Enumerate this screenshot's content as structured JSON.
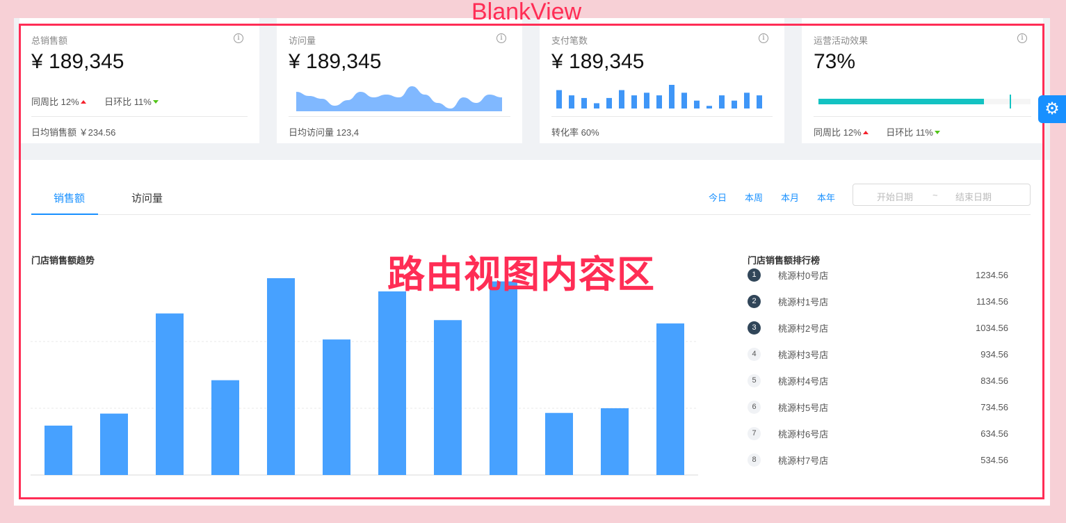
{
  "overlay": {
    "title": "BlankView",
    "content_label": "路由视图内容区"
  },
  "colors": {
    "primary": "#1890ff",
    "bar": "#47a1ff",
    "area": "#80b8ff",
    "progress": "#13c2c2",
    "up": "#f5222d",
    "down": "#52c41a",
    "overlay": "#ff2d55"
  },
  "cards": [
    {
      "title": "总销售额",
      "value": "¥ 189,345",
      "trends": [
        {
          "label": "同周比 12%",
          "dir": "up"
        },
        {
          "label": "日环比 11%",
          "dir": "down"
        }
      ],
      "footer": "日均销售额 ￥234.56",
      "icon": "info-icon"
    },
    {
      "title": "访问量",
      "value": "¥ 189,345",
      "footer": "日均访问量 123,4",
      "icon": "info-icon"
    },
    {
      "title": "支付笔数",
      "value": "¥ 189,345",
      "footer": "转化率 60%",
      "icon": "info-icon"
    },
    {
      "title": "运营活动效果",
      "value": "73%",
      "progress_percent": 78,
      "target_percent": 90,
      "trends": [
        {
          "label": "同周比 12%",
          "dir": "up"
        },
        {
          "label": "日环比 11%",
          "dir": "down"
        }
      ],
      "icon": "info-icon"
    }
  ],
  "mini_area": {
    "type": "area",
    "values": [
      7,
      5.5,
      4.5,
      2,
      4,
      7,
      5,
      6,
      5,
      9,
      6,
      3,
      1,
      5,
      3,
      6,
      5
    ]
  },
  "mini_bar": {
    "type": "bar",
    "values": [
      7,
      5,
      4,
      2,
      4,
      7,
      5,
      6,
      5,
      9,
      6,
      3,
      1,
      5,
      3,
      6,
      5
    ]
  },
  "tabs": [
    {
      "label": "销售额",
      "active": true
    },
    {
      "label": "访问量"
    }
  ],
  "quick_ranges": [
    "今日",
    "本周",
    "本月",
    "本年"
  ],
  "date_range": {
    "start_placeholder": "开始日期",
    "separator": "~",
    "end_placeholder": "结束日期"
  },
  "chart_title": "门店销售额趋势",
  "chart_data": {
    "type": "bar",
    "values": [
      0.74,
      0.92,
      2.42,
      1.42,
      2.95,
      2.03,
      2.75,
      2.32,
      2.9,
      0.93,
      1.0,
      2.27
    ],
    "ylim": [
      0,
      3
    ],
    "grid": true
  },
  "ranking": {
    "title": "门店销售额排行榜",
    "items": [
      {
        "rank": "1",
        "name": "桃源村0号店",
        "value": "1234.56"
      },
      {
        "rank": "2",
        "name": "桃源村1号店",
        "value": "1134.56"
      },
      {
        "rank": "3",
        "name": "桃源村2号店",
        "value": "1034.56"
      },
      {
        "rank": "4",
        "name": "桃源村3号店",
        "value": "934.56"
      },
      {
        "rank": "5",
        "name": "桃源村4号店",
        "value": "834.56"
      },
      {
        "rank": "6",
        "name": "桃源村5号店",
        "value": "734.56"
      },
      {
        "rank": "7",
        "name": "桃源村6号店",
        "value": "634.56"
      },
      {
        "rank": "8",
        "name": "桃源村7号店",
        "value": "534.56"
      }
    ]
  },
  "settings_icon": "gear-icon"
}
